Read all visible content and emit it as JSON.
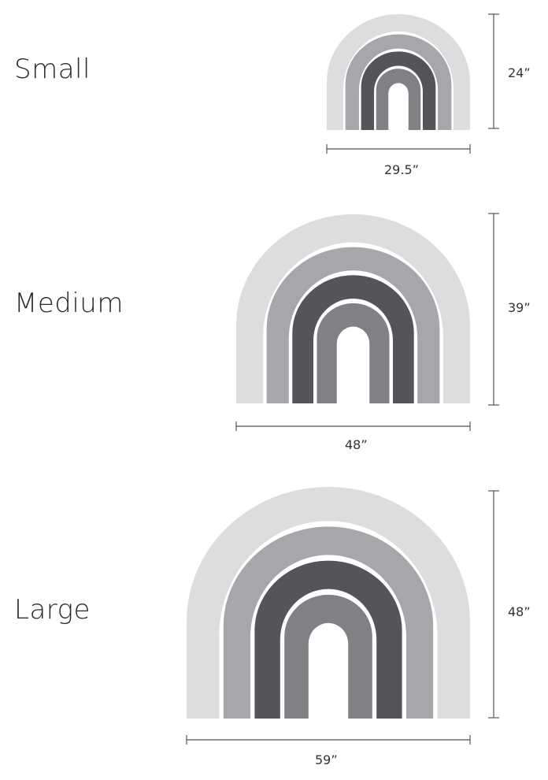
{
  "colors": {
    "band_outer": "#dcdddf",
    "band_second": "#a6a7aa",
    "band_third": "#545558",
    "band_inner": "#808184",
    "dimension_line": "#555555"
  },
  "sizes": [
    {
      "name": "Small",
      "width_label": "29.5”",
      "height_label": "24”"
    },
    {
      "name": "Medium",
      "width_label": "48”",
      "height_label": "39”"
    },
    {
      "name": "Large",
      "width_label": "59”",
      "height_label": "48”"
    }
  ]
}
